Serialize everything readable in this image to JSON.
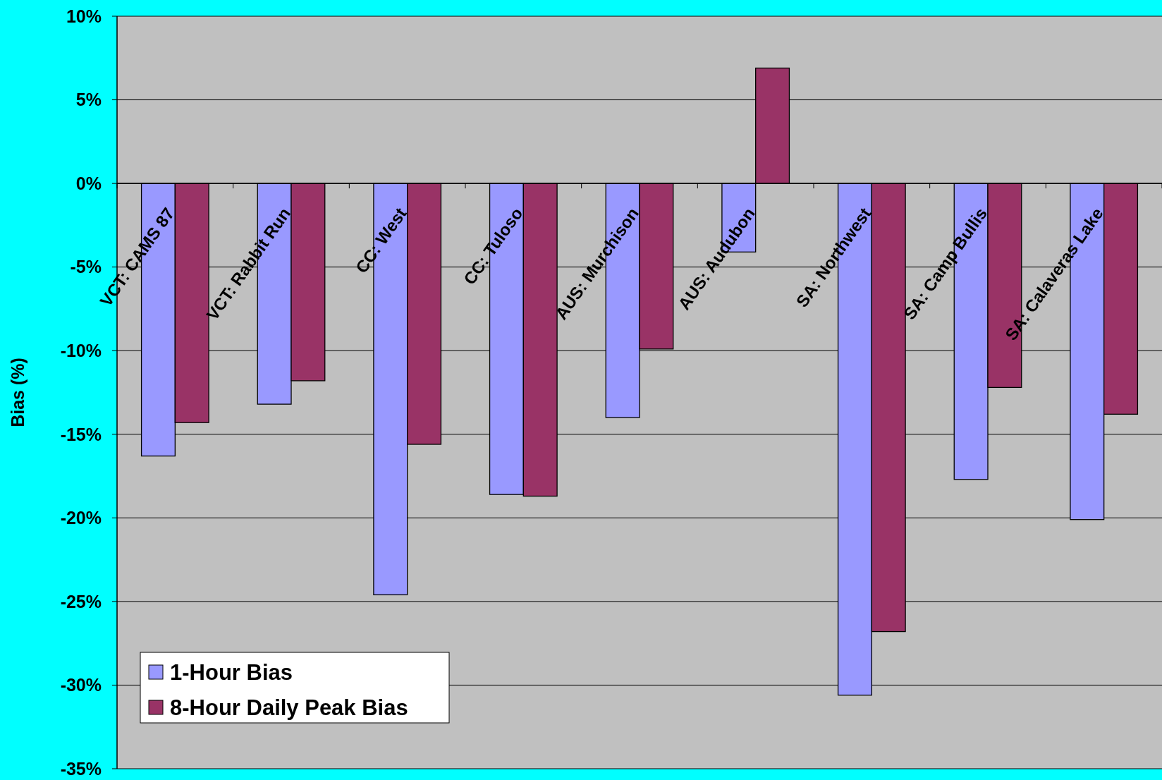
{
  "chart_data": {
    "type": "bar",
    "ylabel": "Bias (%)",
    "categories": [
      "VCT: CAMS 87",
      "VCT: Rabbit Run",
      "CC: West",
      "CC: Tuloso",
      "AUS: Murchison",
      "AUS: Audubon",
      "SA: Northwest",
      "SA: Camp Bullis",
      "SA: Calaveras Lake"
    ],
    "series": [
      {
        "name": "1-Hour Bias",
        "color": "#9999ff",
        "values": [
          -16.3,
          -13.2,
          -24.6,
          -18.6,
          -14.0,
          -4.1,
          -30.6,
          -17.7,
          -20.1
        ]
      },
      {
        "name": "8-Hour Daily Peak Bias",
        "color": "#993366",
        "values": [
          -14.3,
          -11.8,
          -15.6,
          -18.7,
          -9.9,
          6.9,
          -26.8,
          -12.2,
          -13.8
        ]
      }
    ],
    "ylim": [
      -35,
      10
    ],
    "yticks": [
      {
        "value": 10,
        "label": "10%"
      },
      {
        "value": 5,
        "label": "5%"
      },
      {
        "value": 0,
        "label": "0%"
      },
      {
        "value": -5,
        "label": "-5%"
      },
      {
        "value": -10,
        "label": "-10%"
      },
      {
        "value": -15,
        "label": "-15%"
      },
      {
        "value": -20,
        "label": "-20%"
      },
      {
        "value": -25,
        "label": "-25%"
      },
      {
        "value": -30,
        "label": "-30%"
      },
      {
        "value": -35,
        "label": "-35%"
      }
    ],
    "grid": "y",
    "legend": "bottom left"
  }
}
